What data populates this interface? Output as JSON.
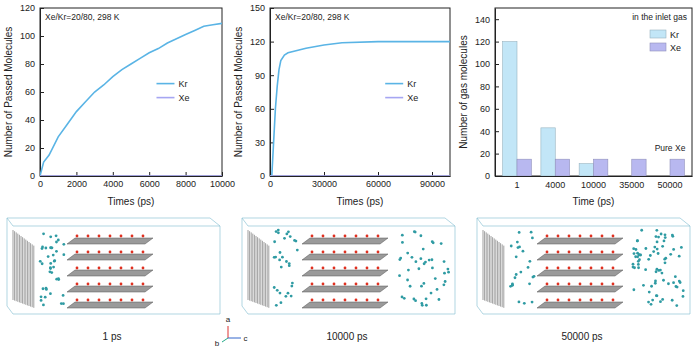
{
  "chart_data": [
    {
      "type": "line",
      "annotations": [
        "Xe/Kr=20/80, 298 K"
      ],
      "x_label": "Times (ps)",
      "y_label": "Number of Passed Molecules",
      "x": [
        0,
        200,
        500,
        1000,
        1500,
        2000,
        2500,
        3000,
        3500,
        4000,
        4500,
        5000,
        5500,
        6000,
        6500,
        7000,
        7500,
        8000,
        8500,
        9000,
        9500,
        10000
      ],
      "series": [
        {
          "name": "Kr",
          "color": "#5ab4e5",
          "values": [
            0,
            10,
            15,
            28,
            37,
            46,
            53,
            60,
            65,
            71,
            76,
            80,
            84,
            88,
            91,
            95,
            98,
            101,
            104,
            107,
            108,
            109
          ]
        },
        {
          "name": "Xe",
          "color": "#a6a6f2",
          "values": [
            0,
            0,
            0,
            0,
            0,
            0,
            0,
            0,
            0,
            0,
            0,
            0,
            0,
            0,
            0,
            0,
            0,
            0,
            0,
            0,
            0,
            0
          ]
        }
      ],
      "xlim": [
        0,
        10000
      ],
      "xticks": [
        0,
        2000,
        4000,
        6000,
        8000,
        10000
      ],
      "ylim": [
        0,
        120
      ],
      "yticks": [
        0,
        20,
        40,
        60,
        80,
        100,
        120
      ],
      "legend": "right"
    },
    {
      "type": "line",
      "annotations": [
        "Xe/Kr=20/80, 298 K"
      ],
      "x_label": "Times (ps)",
      "y_label": "Number of Passed Molecules",
      "x": [
        0,
        1000,
        2000,
        3000,
        4000,
        5000,
        6000,
        8000,
        10000,
        15000,
        20000,
        30000,
        40000,
        60000,
        80000,
        100000
      ],
      "series": [
        {
          "name": "Kr",
          "color": "#5ab4e5",
          "values": [
            0,
            0,
            30,
            60,
            80,
            95,
            103,
            108,
            110,
            112,
            114,
            117,
            119,
            120,
            120,
            120
          ]
        },
        {
          "name": "Xe",
          "color": "#a6a6f2",
          "values": [
            0,
            0,
            0,
            0,
            0,
            0,
            0,
            0,
            0,
            0,
            0,
            0,
            0,
            0,
            0,
            0
          ]
        }
      ],
      "xlim": [
        0,
        100000
      ],
      "xticks": [
        0,
        30000,
        60000,
        90000
      ],
      "ylim": [
        0,
        150
      ],
      "yticks": [
        0,
        30,
        60,
        90,
        120,
        150
      ],
      "legend": "right"
    },
    {
      "type": "bar",
      "annotations": [
        "in the inlet gas",
        "Pure Xe"
      ],
      "x_label": "Time (ps)",
      "y_label": "Number of gas molecules",
      "categories": [
        "1",
        "4000",
        "10000",
        "35000",
        "50000"
      ],
      "series": [
        {
          "name": "Kr",
          "color": "#c2e6f7",
          "values": [
            120,
            43,
            11,
            0,
            0
          ]
        },
        {
          "name": "Xe",
          "color": "#b8b8f0",
          "values": [
            15,
            15,
            15,
            15,
            15
          ]
        }
      ],
      "ylim": [
        0,
        150
      ],
      "yticks": [
        0,
        20,
        40,
        60,
        80,
        100,
        120,
        140
      ],
      "legend": "upper right"
    }
  ],
  "snapshots": {
    "labels": [
      "1 ps",
      "10000 ps",
      "50000 ps"
    ],
    "axes": [
      "a",
      "b",
      "c"
    ]
  }
}
